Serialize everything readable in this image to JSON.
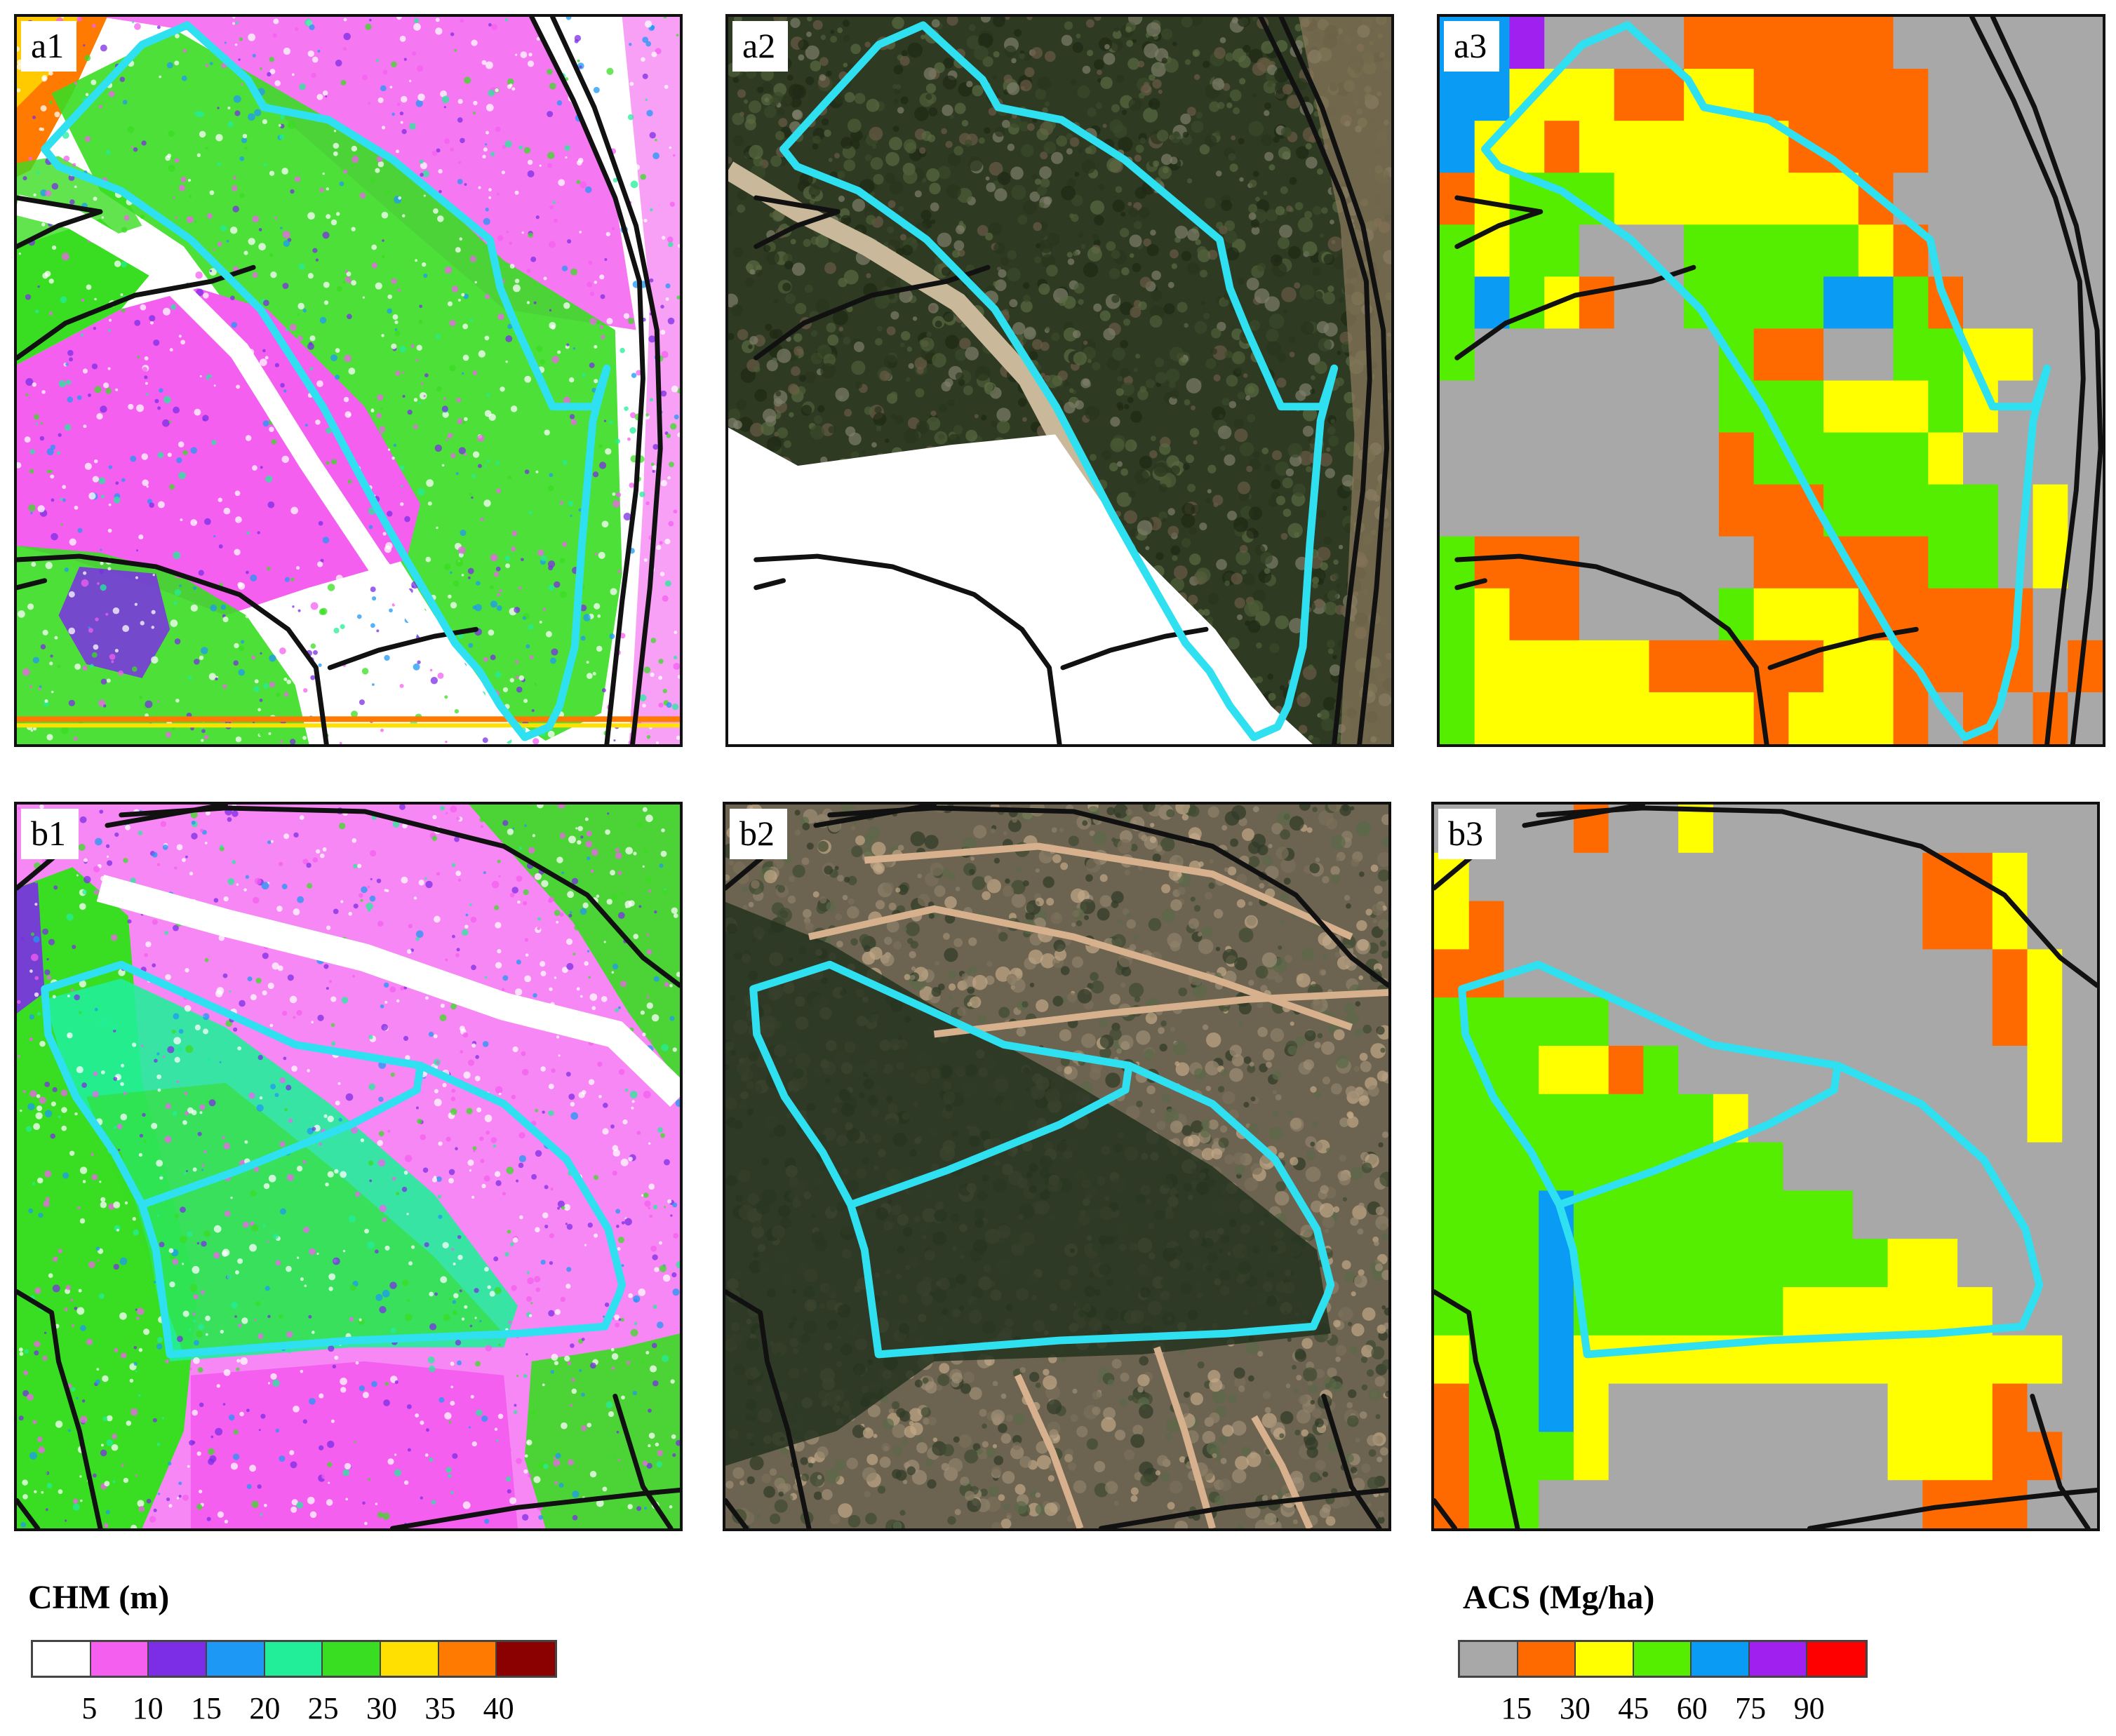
{
  "panels": [
    {
      "id": "a1",
      "label": "a1",
      "type": "chm"
    },
    {
      "id": "a2",
      "label": "a2",
      "type": "aerial"
    },
    {
      "id": "a3",
      "label": "a3",
      "type": "acs"
    },
    {
      "id": "b1",
      "label": "b1",
      "type": "chm"
    },
    {
      "id": "b2",
      "label": "b2",
      "type": "aerial"
    },
    {
      "id": "b3",
      "label": "b3",
      "type": "acs"
    }
  ],
  "colors": {
    "boundary": "#2fe0f0",
    "road": "#111111",
    "chm": [
      "#ffffff",
      "#f45ff0",
      "#7b2ee6",
      "#1e98f5",
      "#22ee9a",
      "#39dd22",
      "#ffe000",
      "#ff7a00",
      "#8b0000"
    ],
    "acs": [
      "#a8a8a8",
      "#ff6a00",
      "#ffff00",
      "#55ee00",
      "#0a9cf5",
      "#a020f0",
      "#ff0000"
    ]
  },
  "legends": {
    "chm": {
      "title": "CHM (m)",
      "ticks": [
        "5",
        "10",
        "15",
        "20",
        "25",
        "30",
        "35",
        "40"
      ]
    },
    "acs": {
      "title": "ACS (Mg/ha)",
      "ticks": [
        "15",
        "30",
        "45",
        "60",
        "75",
        "90"
      ]
    }
  }
}
